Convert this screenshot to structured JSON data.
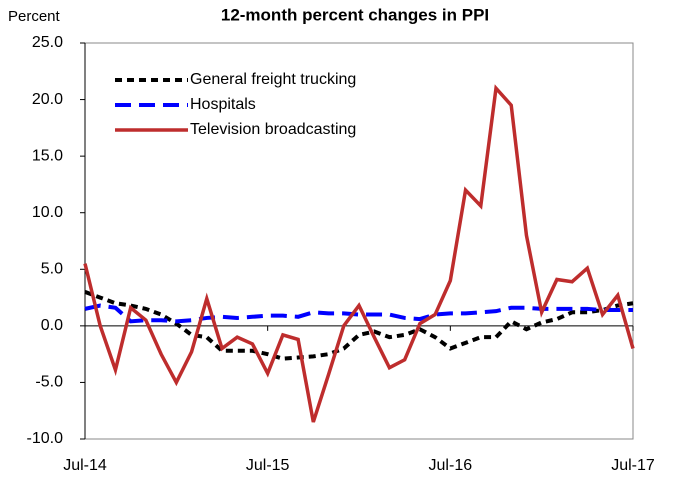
{
  "chart_data": {
    "type": "line",
    "title": "12-month percent changes in PPI",
    "y_label": "Percent",
    "categories": [
      "Jul-14",
      null,
      null,
      null,
      null,
      null,
      null,
      null,
      null,
      null,
      null,
      null,
      "Jul-15",
      null,
      null,
      null,
      null,
      null,
      null,
      null,
      null,
      null,
      null,
      null,
      "Jul-16",
      null,
      null,
      null,
      null,
      null,
      null,
      null,
      null,
      null,
      null,
      null,
      "Jul-17"
    ],
    "series": [
      {
        "name": "General freight trucking",
        "color": "#000000",
        "dash": "7,5",
        "values": [
          3.0,
          2.5,
          2.0,
          1.8,
          1.5,
          1.0,
          0.2,
          -0.8,
          -1.0,
          -2.2,
          -2.2,
          -2.2,
          -2.5,
          -2.9,
          -2.8,
          -2.7,
          -2.5,
          -2.0,
          -0.8,
          -0.5,
          -1.0,
          -0.8,
          -0.3,
          -1.0,
          -2.0,
          -1.5,
          -1.0,
          -1.0,
          0.4,
          -0.3,
          0.3,
          0.6,
          1.2,
          1.2,
          1.4,
          1.8,
          2.0
        ]
      },
      {
        "name": "Hospitals",
        "color": "#0000ff",
        "dash": "16,8",
        "values": [
          1.5,
          1.8,
          1.6,
          0.4,
          0.5,
          0.5,
          0.4,
          0.5,
          0.7,
          0.8,
          0.7,
          0.8,
          0.9,
          0.9,
          0.8,
          1.2,
          1.1,
          1.1,
          1.0,
          1.0,
          1.0,
          0.7,
          0.6,
          1.0,
          1.1,
          1.1,
          1.2,
          1.3,
          1.6,
          1.6,
          1.5,
          1.5,
          1.5,
          1.5,
          1.4,
          1.4,
          1.4
        ]
      },
      {
        "name": "Television broadcasting",
        "color": "#be2d2d",
        "dash": "none",
        "values": [
          5.5,
          0,
          -3.9,
          1.6,
          0.5,
          -2.5,
          -5.0,
          -2.3,
          2.4,
          -2.0,
          -1.0,
          -1.6,
          -4.2,
          -0.8,
          -1.2,
          -8.5,
          -4.3,
          0,
          1.8,
          -1.0,
          -3.7,
          -3.0,
          0.2,
          1.0,
          4.0,
          12.0,
          10.6,
          21.0,
          19.5,
          8.0,
          1.2,
          4.1,
          3.9,
          5.1,
          1.0,
          2.7,
          -2.0
        ]
      }
    ],
    "ylim": [
      -10,
      25
    ],
    "yticks": [
      {
        "value": -10,
        "label": "-10.0"
      },
      {
        "value": -5,
        "label": "-5.0"
      },
      {
        "value": 0,
        "label": "0.0"
      },
      {
        "value": 5,
        "label": "5.0"
      },
      {
        "value": 10,
        "label": "10.0"
      },
      {
        "value": 15,
        "label": "15.0"
      },
      {
        "value": 20,
        "label": "20.0"
      },
      {
        "value": 25,
        "label": "25.0"
      }
    ],
    "legend": "upper left"
  }
}
